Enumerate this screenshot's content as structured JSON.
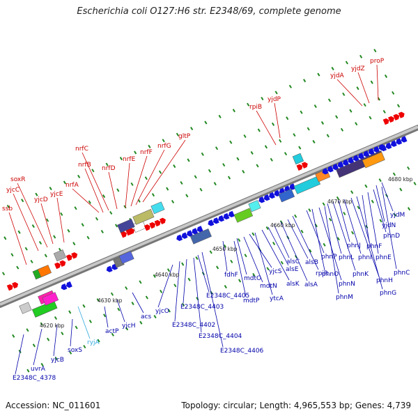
{
  "title": "Escherichia coli O127:H6 str. E2348/69, complete genome",
  "footer": {
    "accession": "Accession: NC_011601",
    "topology": "Topology: circular; Length: 4,965,553 bp; Genes: 4,739"
  },
  "colors": {
    "forward_gene": "#ee0000",
    "reverse_gene": "#1010dd",
    "forward_label": "#cc0000",
    "reverse_label": "#0000aa",
    "rna_label": "#33aadd",
    "backbone": "#999999"
  },
  "ticks": [
    "4620 kbp",
    "4630 kbp",
    "4640 kbp",
    "4650 kbp",
    "4660 kbp",
    "4670 kbp",
    "4680 kbp"
  ],
  "upper_labels": [
    "ssb",
    "yjcC",
    "soxR",
    "yjcD",
    "yjcE",
    "nrfA",
    "nrfB",
    "nrfC",
    "nrfD",
    "nrfE",
    "nrfF",
    "nrfG",
    "gltP",
    "rpiB",
    "yjdP",
    "yjdA",
    "yjdZ",
    "proP"
  ],
  "lower_labels": [
    "E2348C_4378",
    "uvrA",
    "yjcB",
    "soxS",
    "ryjA",
    "actP",
    "yjcH",
    "acs",
    "yjcO",
    "E2348C_4402",
    "E2348C_4403",
    "E2348C_4404",
    "E2348C_4405",
    "E2348C_4406",
    "fdhF",
    "mdtP",
    "mdtO",
    "mdtN",
    "yjcS",
    "ytcA",
    "alsK",
    "alsE",
    "alsC",
    "alsA",
    "alsB",
    "rpiR",
    "phnP",
    "phnO",
    "phnN",
    "phnM",
    "phnL",
    "phnK",
    "phnJ",
    "phnI",
    "phnH",
    "phnG",
    "phnF",
    "phnE",
    "phnD",
    "phnC",
    "yjdN",
    "yjdM"
  ]
}
